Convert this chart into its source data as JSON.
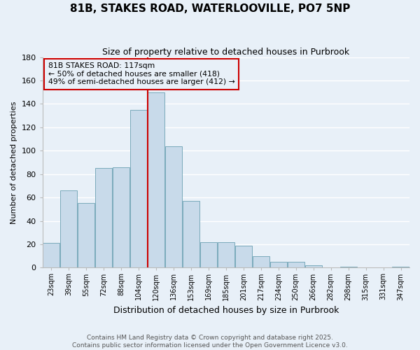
{
  "title": "81B, STAKES ROAD, WATERLOOVILLE, PO7 5NP",
  "subtitle": "Size of property relative to detached houses in Purbrook",
  "xlabel": "Distribution of detached houses by size in Purbrook",
  "ylabel": "Number of detached properties",
  "categories": [
    "23sqm",
    "39sqm",
    "55sqm",
    "72sqm",
    "88sqm",
    "104sqm",
    "120sqm",
    "136sqm",
    "153sqm",
    "169sqm",
    "185sqm",
    "201sqm",
    "217sqm",
    "234sqm",
    "250sqm",
    "266sqm",
    "282sqm",
    "298sqm",
    "315sqm",
    "331sqm",
    "347sqm"
  ],
  "values": [
    21,
    66,
    55,
    85,
    86,
    135,
    150,
    104,
    57,
    22,
    22,
    19,
    10,
    5,
    5,
    2,
    0,
    1,
    0,
    0,
    1
  ],
  "bar_color": "#c8daea",
  "bar_edge_color": "#7aaabb",
  "background_color": "#e8f0f8",
  "grid_color": "#ffffff",
  "vline_x": 5.5,
  "vline_color": "#cc0000",
  "annotation_title": "81B STAKES ROAD: 117sqm",
  "annotation_line1": "← 50% of detached houses are smaller (418)",
  "annotation_line2": "49% of semi-detached houses are larger (412) →",
  "annotation_box_color": "#cc0000",
  "ylim": [
    0,
    180
  ],
  "yticks": [
    0,
    20,
    40,
    60,
    80,
    100,
    120,
    140,
    160,
    180
  ],
  "footer1": "Contains HM Land Registry data © Crown copyright and database right 2025.",
  "footer2": "Contains public sector information licensed under the Open Government Licence v3.0."
}
